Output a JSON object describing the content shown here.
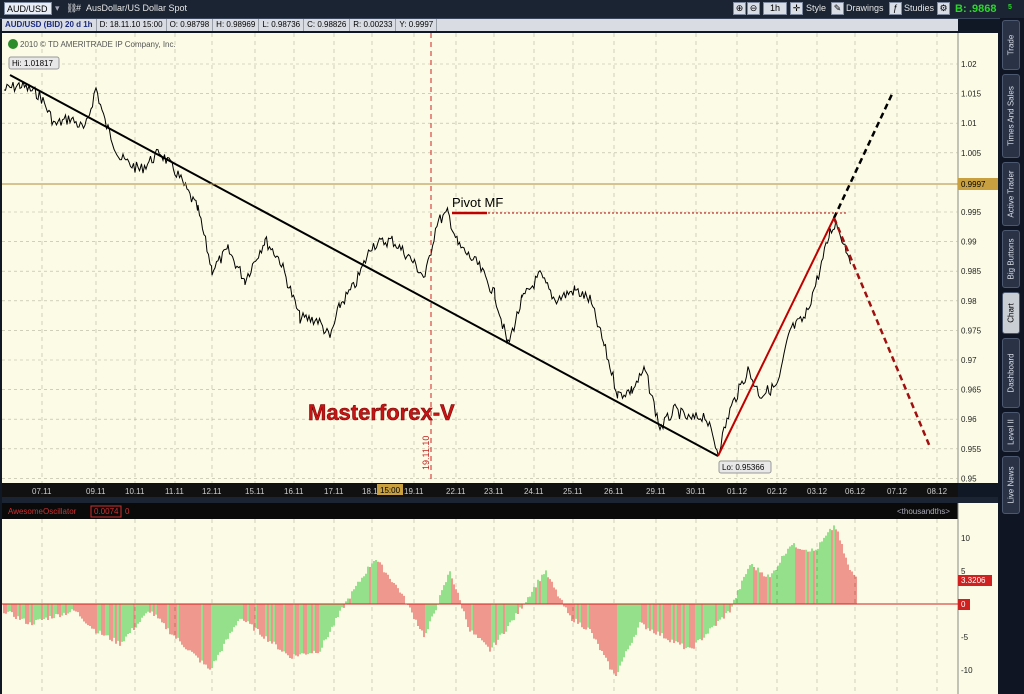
{
  "toolbar": {
    "symbol": "AUD/USD",
    "symbol_desc": "AusDollar/US Dollar Spot",
    "timeframe": "1h",
    "style": "Style",
    "drawings": "Drawings",
    "studies": "Studies",
    "bid_label": "B:",
    "bid_value": ".9868",
    "bid_suffix": "5"
  },
  "infobar": {
    "title": "AUD/USD (BID) 20 d 1h",
    "date": "D: 18.11.10 15:00",
    "open": "O: 0.98798",
    "high": "H: 0.98969",
    "low": "L: 0.98736",
    "close": "C: 0.98826",
    "range": "R: 0.00233",
    "y": "Y: 0.9997"
  },
  "chart": {
    "copyright": "2010 © TD AMERITRADE IP Company, Inc.",
    "hi_label": "Hi: 1.01817",
    "lo_label": "Lo: 0.95366",
    "pivot_label": "Pivot MF",
    "watermark": "Masterforex-V",
    "vline_label": "19.11.10",
    "current_price": "0.9997",
    "time_marker": "15:00"
  },
  "price_axis": [
    "1.02",
    "1.015",
    "1.01",
    "1.005",
    "0.995",
    "0.99",
    "0.985",
    "0.98",
    "0.975",
    "0.97",
    "0.965",
    "0.96",
    "0.955",
    "0.95"
  ],
  "date_axis": [
    "07.11",
    "09.11",
    "10.11",
    "11.11",
    "12.11",
    "15.11",
    "16.11",
    "17.11",
    "18.11",
    "19.11",
    "22.11",
    "23.11",
    "24.11",
    "25.11",
    "26.11",
    "29.11",
    "30.11",
    "01.12",
    "02.12",
    "03.12",
    "06.12",
    "07.12",
    "08.12"
  ],
  "oscillator": {
    "name": "AwesomeOscillator",
    "value": "0.0074",
    "extra": "0",
    "units": "<thousandths>",
    "axis": [
      "10",
      "5",
      "0",
      "-5",
      "-10"
    ],
    "current": "3.3206",
    "zero": "0"
  },
  "sidetabs": [
    "Trade",
    "Times And Sales",
    "Active Trader",
    "Big Buttons",
    "Chart",
    "Dashboard",
    "Level II",
    "Live News"
  ],
  "colors": {
    "chart_bg": "#fcfce6",
    "osc_up": "#2ec52e",
    "osc_down": "#e23636",
    "trend": "#000000",
    "red_line": "#c00000"
  }
}
